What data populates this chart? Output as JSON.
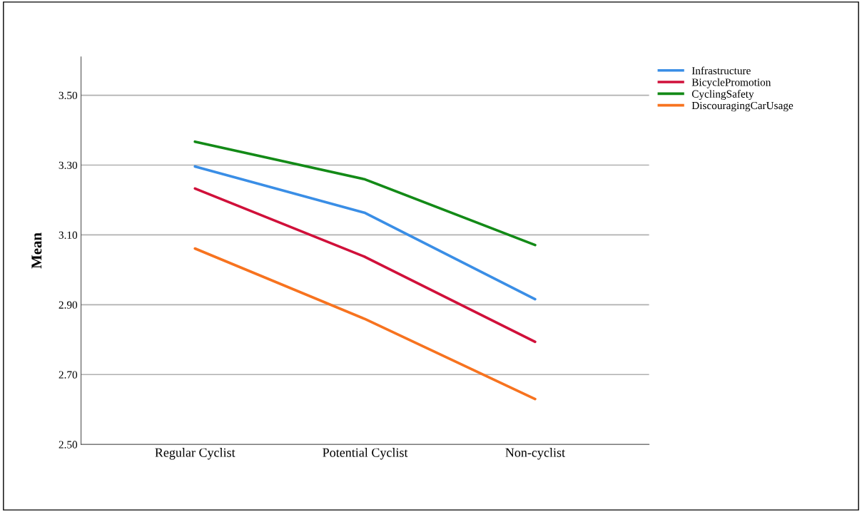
{
  "chart_data": {
    "type": "line",
    "ylabel": "Mean",
    "categories": [
      "Regular Cyclist",
      "Potential Cyclist",
      "Non-cyclist"
    ],
    "series": [
      {
        "name": "Infrastructure",
        "color": "#3a8ee6",
        "values": [
          3.296,
          3.163,
          2.916
        ]
      },
      {
        "name": "BicyclePromotion",
        "color": "#d0103a",
        "values": [
          3.233,
          3.037,
          2.794
        ]
      },
      {
        "name": "CyclingSafety",
        "color": "#138a17",
        "values": [
          3.367,
          3.259,
          3.071
        ]
      },
      {
        "name": "DiscouragingCarUsage",
        "color": "#f7731f",
        "values": [
          3.061,
          2.859,
          2.63
        ]
      }
    ],
    "ylim": [
      2.5,
      3.61
    ],
    "yticks": [
      {
        "value": 2.5,
        "label": "2.50"
      },
      {
        "value": 2.7,
        "label": "2.70"
      },
      {
        "value": 2.9,
        "label": "2.90"
      },
      {
        "value": 3.1,
        "label": "3.10"
      },
      {
        "value": 3.3,
        "label": "3.30"
      },
      {
        "value": 3.5,
        "label": "3.50"
      }
    ],
    "grid": "y",
    "legend": "top right",
    "marker": "none",
    "line_style": "solid"
  }
}
